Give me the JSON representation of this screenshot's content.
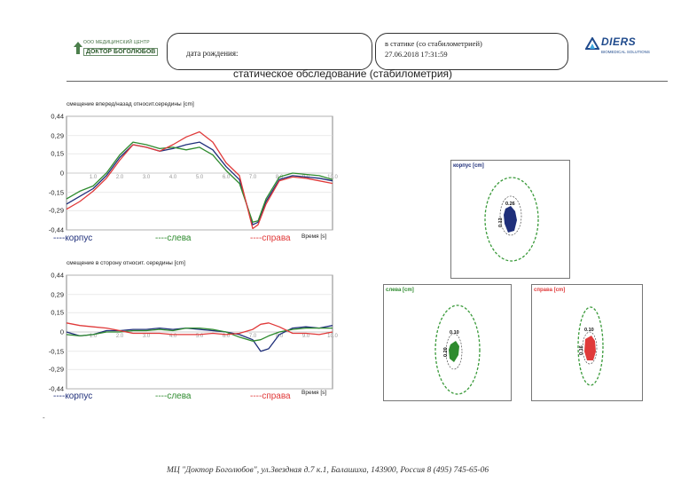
{
  "header": {
    "logo_small": "ООО МЕДИЦИНСКИЙ ЦЕНТР",
    "logo_big": "ДОКТОР БОГОЛЮБОВ",
    "dob_label": "дата рождения:",
    "exam_line1": "в статике (со стабилометрией)",
    "exam_line2": "27.06.2018 17:31:59",
    "brand_name": "DIERS",
    "brand_sub": "BIOMEDICAL SOLUTIONS",
    "title": "статическое обследование (стабилометрия)"
  },
  "colors": {
    "korpus": "#1f2f7a",
    "sleva": "#2e8b2e",
    "sprava": "#e03a3a",
    "ellipse": "#3a9a3a"
  },
  "chart_data": [
    {
      "type": "line",
      "title": "смещение вперед/назад  относит.середины [cm]",
      "xlabel": "Время [s]",
      "ylabel": "",
      "xlim": [
        0,
        10
      ],
      "ylim": [
        -0.44,
        0.44
      ],
      "yticks": [
        "0,44",
        "0,29",
        "0,15",
        "0",
        "-0,15",
        "-0,29",
        "-0,44"
      ],
      "ytick_values": [
        0.44,
        0.29,
        0.15,
        0,
        -0.15,
        -0.29,
        -0.44
      ],
      "xticks": [
        "1.0",
        "2.0",
        "3.0",
        "4.0",
        "5.0",
        "6.0",
        "7.0",
        "8.0",
        "9.0",
        "10.0"
      ],
      "xtick_values": [
        1,
        2,
        3,
        4,
        5,
        6,
        7,
        8,
        9,
        10
      ],
      "legend": [
        "----корпус",
        "----слева",
        "----справа"
      ],
      "series": [
        {
          "name": "----корпус",
          "color_key": "korpus",
          "x": [
            0,
            0.5,
            1,
            1.5,
            2,
            2.5,
            3,
            3.5,
            4,
            4.5,
            5,
            5.5,
            6,
            6.5,
            7,
            7.2,
            7.5,
            8,
            8.5,
            9,
            9.5,
            10
          ],
          "values": [
            -0.24,
            -0.18,
            -0.12,
            -0.02,
            0.12,
            0.22,
            0.2,
            0.17,
            0.19,
            0.22,
            0.24,
            0.18,
            0.05,
            -0.05,
            -0.4,
            -0.38,
            -0.22,
            -0.05,
            -0.02,
            -0.03,
            -0.04,
            -0.06
          ]
        },
        {
          "name": "----слева",
          "color_key": "sleva",
          "x": [
            0,
            0.5,
            1,
            1.5,
            2,
            2.5,
            3,
            3.5,
            4,
            4.5,
            5,
            5.5,
            6,
            6.5,
            7,
            7.2,
            7.5,
            8,
            8.5,
            9,
            9.5,
            10
          ],
          "values": [
            -0.2,
            -0.14,
            -0.1,
            0.0,
            0.14,
            0.24,
            0.22,
            0.19,
            0.2,
            0.18,
            0.2,
            0.14,
            0.02,
            -0.08,
            -0.38,
            -0.37,
            -0.2,
            -0.03,
            0.0,
            -0.01,
            -0.02,
            -0.05
          ]
        },
        {
          "name": "----справа",
          "color_key": "sprava",
          "x": [
            0,
            0.5,
            1,
            1.5,
            2,
            2.5,
            3,
            3.5,
            4,
            4.5,
            5,
            5.5,
            6,
            6.5,
            7,
            7.2,
            7.5,
            8,
            8.5,
            9,
            9.5,
            10
          ],
          "values": [
            -0.28,
            -0.22,
            -0.14,
            -0.04,
            0.1,
            0.22,
            0.2,
            0.17,
            0.22,
            0.28,
            0.32,
            0.24,
            0.08,
            -0.02,
            -0.43,
            -0.4,
            -0.24,
            -0.06,
            -0.03,
            -0.04,
            -0.06,
            -0.08
          ]
        }
      ]
    },
    {
      "type": "line",
      "title": "смещение в сторону  относит. середины [cm]",
      "xlabel": "Время [s]",
      "ylabel": "",
      "xlim": [
        0,
        10
      ],
      "ylim": [
        -0.44,
        0.44
      ],
      "yticks": [
        "0,44",
        "0,29",
        "0,15",
        "0",
        "-0,15",
        "-0,29",
        "-0,44"
      ],
      "ytick_values": [
        0.44,
        0.29,
        0.15,
        0,
        -0.15,
        -0.29,
        -0.44
      ],
      "xticks": [
        "1.0",
        "2.0",
        "3.0",
        "4.0",
        "5.0",
        "6.0",
        "7.0",
        "8.0",
        "9.0",
        "10.0"
      ],
      "xtick_values": [
        1,
        2,
        3,
        4,
        5,
        6,
        7,
        8,
        9,
        10
      ],
      "legend": [
        "----корпус",
        "----слева",
        "----справа"
      ],
      "series": [
        {
          "name": "----корпус",
          "color_key": "korpus",
          "x": [
            0,
            0.5,
            1,
            1.5,
            2,
            2.5,
            3,
            3.5,
            4,
            4.5,
            5,
            5.5,
            6,
            6.5,
            7,
            7.3,
            7.6,
            8,
            8.5,
            9,
            9.5,
            10
          ],
          "values": [
            0.0,
            -0.03,
            -0.02,
            0.01,
            0.01,
            0.02,
            0.02,
            0.03,
            0.02,
            0.03,
            0.02,
            0.01,
            0.0,
            -0.02,
            -0.06,
            -0.15,
            -0.13,
            -0.02,
            0.03,
            0.04,
            0.03,
            0.05
          ]
        },
        {
          "name": "----слева",
          "color_key": "sleva",
          "x": [
            0,
            0.5,
            1,
            1.5,
            2,
            2.5,
            3,
            3.5,
            4,
            4.5,
            5,
            5.5,
            6,
            6.5,
            7,
            7.3,
            7.6,
            8,
            8.5,
            9,
            9.5,
            10
          ],
          "values": [
            -0.02,
            -0.03,
            -0.02,
            0.0,
            0.0,
            0.01,
            0.01,
            0.02,
            0.01,
            0.03,
            0.03,
            0.02,
            0.0,
            -0.04,
            -0.07,
            -0.06,
            -0.03,
            0.0,
            0.02,
            0.03,
            0.03,
            0.03
          ]
        },
        {
          "name": "----справа",
          "color_key": "sprava",
          "x": [
            0,
            0.5,
            1,
            1.5,
            2,
            2.5,
            3,
            3.5,
            4,
            4.5,
            5,
            5.5,
            6,
            6.5,
            7,
            7.3,
            7.6,
            8,
            8.5,
            9,
            9.5,
            10
          ],
          "values": [
            0.07,
            0.05,
            0.04,
            0.03,
            0.01,
            -0.01,
            -0.01,
            -0.01,
            -0.02,
            -0.02,
            -0.02,
            -0.01,
            -0.02,
            -0.01,
            0.02,
            0.06,
            0.07,
            0.04,
            -0.01,
            -0.01,
            -0.02,
            0.0
          ]
        }
      ]
    }
  ],
  "stabilograms": [
    {
      "label": "корпус [cm]",
      "color_key": "korpus",
      "value_h": "0.26",
      "value_v": "0.13"
    },
    {
      "label": "слева [cm]",
      "color_key": "sleva",
      "value_h": "0.10",
      "value_v": "0.20"
    },
    {
      "label": "справа [cm]",
      "color_key": "sprava",
      "value_h": "0.10",
      "value_v": "0.16"
    }
  ],
  "footer": "МЦ \"Доктор Боголюбов\",  ул.Звездная д.7 к.1, Балашиха, 143900, Россия  8 (495) 745-65-06"
}
